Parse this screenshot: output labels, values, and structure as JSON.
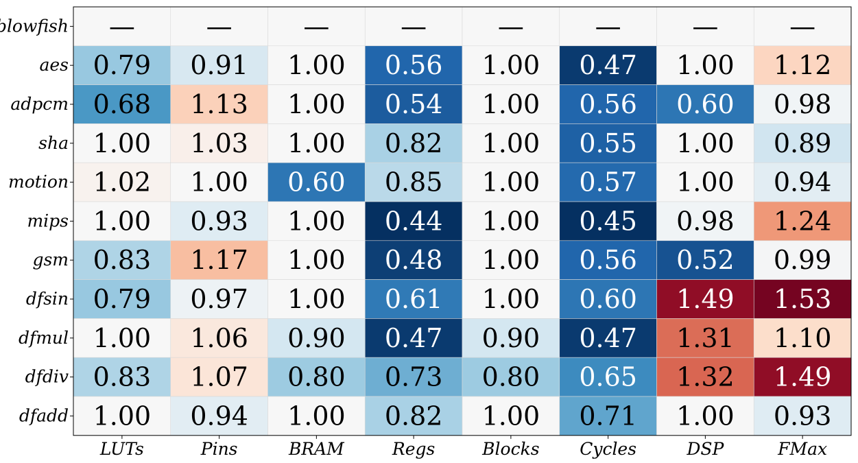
{
  "chart_data": {
    "type": "heatmap",
    "rows": [
      "blowfish",
      "aes",
      "adpcm",
      "sha",
      "motion",
      "mips",
      "gsm",
      "dfsin",
      "dfmul",
      "dfdiv",
      "dfadd"
    ],
    "columns": [
      "LUTs",
      "Pins",
      "BRAM",
      "Regs",
      "Blocks",
      "Cycles",
      "DSP",
      "FMax"
    ],
    "missing_label": "—",
    "values": [
      [
        null,
        null,
        null,
        null,
        null,
        null,
        null,
        null
      ],
      [
        0.79,
        0.91,
        1.0,
        0.56,
        1.0,
        0.47,
        1.0,
        1.12
      ],
      [
        0.68,
        1.13,
        1.0,
        0.54,
        1.0,
        0.56,
        0.6,
        0.98
      ],
      [
        1.0,
        1.03,
        1.0,
        0.82,
        1.0,
        0.55,
        1.0,
        0.89
      ],
      [
        1.02,
        1.0,
        0.6,
        0.85,
        1.0,
        0.57,
        1.0,
        0.94
      ],
      [
        1.0,
        0.93,
        1.0,
        0.44,
        1.0,
        0.45,
        0.98,
        1.24
      ],
      [
        0.83,
        1.17,
        1.0,
        0.48,
        1.0,
        0.56,
        0.52,
        0.99
      ],
      [
        0.79,
        0.97,
        1.0,
        0.61,
        1.0,
        0.6,
        1.49,
        1.53
      ],
      [
        1.0,
        1.06,
        0.9,
        0.47,
        0.9,
        0.47,
        1.31,
        1.1
      ],
      [
        0.83,
        1.07,
        0.8,
        0.73,
        0.8,
        0.65,
        1.32,
        1.49
      ],
      [
        1.0,
        0.94,
        1.0,
        0.82,
        1.0,
        0.71,
        1.0,
        0.93
      ]
    ],
    "colormap": "diverging blue-white-red",
    "center": 1.0,
    "colors": {
      "low": "#053061",
      "mid": "#f7f7f7",
      "high": "#67001f"
    },
    "title": "",
    "xlabel": "",
    "ylabel": ""
  }
}
